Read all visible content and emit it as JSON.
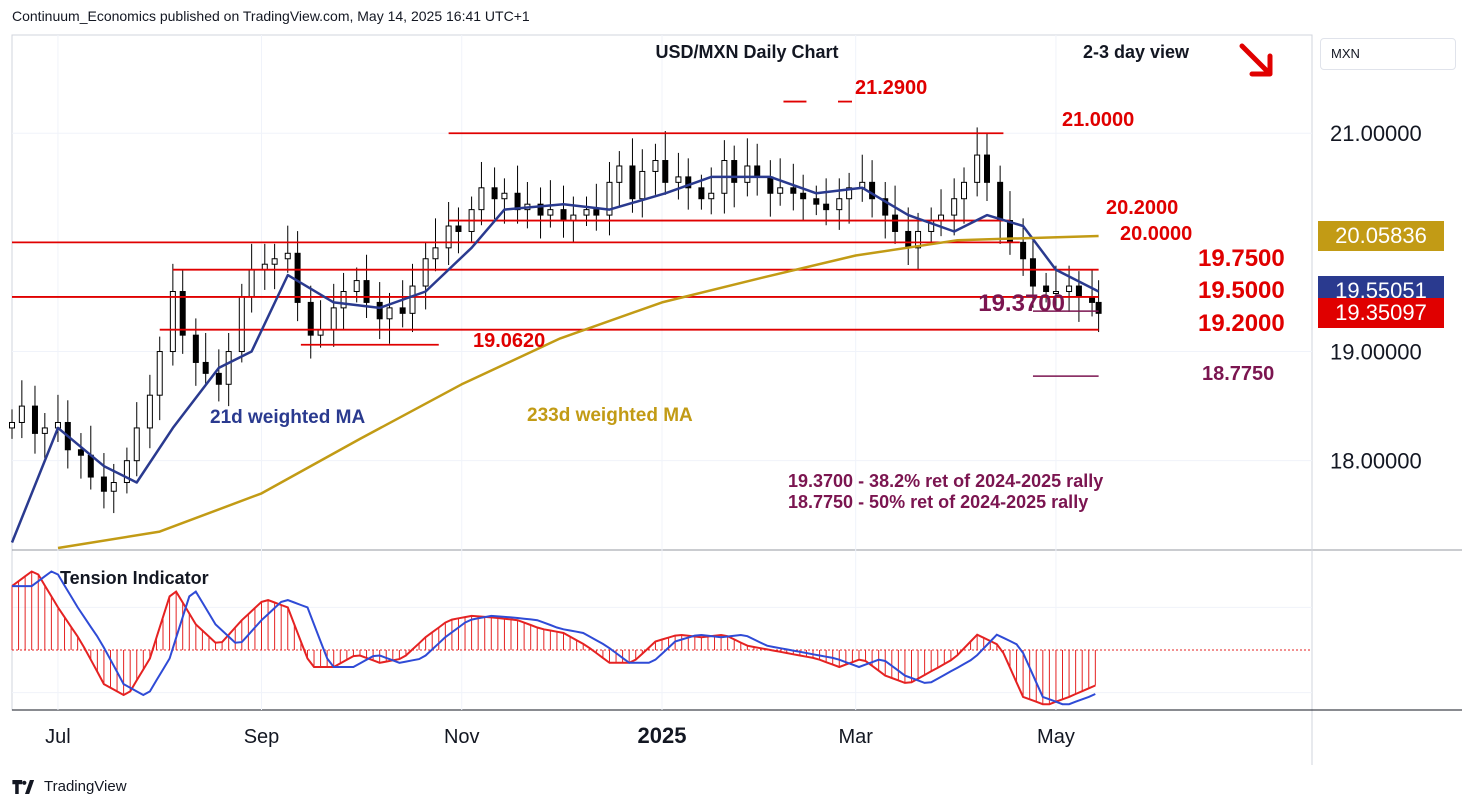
{
  "header": "Continuum_Economics published on TradingView.com, May 14, 2025 16:41 UTC+1",
  "footer": {
    "brand": "TradingView"
  },
  "currency": "MXN",
  "colors": {
    "resistance": "#e00000",
    "ma21": "#2a3a8f",
    "ma233": "#c29b15",
    "retracement": "#7b1550",
    "candle": "#000000",
    "tension_pos": "#e52222",
    "tension_neg": "#e52222",
    "tension_line": "#2f4bd6"
  },
  "price_tags": [
    {
      "label": "20.05836",
      "value": 20.05836,
      "color": "#c29b15"
    },
    {
      "label": "19.55051",
      "value": 19.55051,
      "color": "#2a3a8f"
    },
    {
      "label": "19.35097",
      "value": 19.35097,
      "color": "#e00000"
    }
  ],
  "chart_data": [
    {
      "type": "line",
      "title": "USD/MXN Daily Chart",
      "subtitle": "2-3 day view",
      "view_direction": "down",
      "x_ticks": [
        "Jul",
        "Sep",
        "Nov",
        "2025",
        "Mar",
        "May"
      ],
      "x_tick_dates": [
        "2024-07-01",
        "2024-09-01",
        "2024-11-01",
        "2025-01-01",
        "2025-03-01",
        "2025-05-01"
      ],
      "x_range": [
        "2024-06-17",
        "2025-07-18"
      ],
      "y_ticks": [
        18.0,
        19.0,
        21.0
      ],
      "y_tick_labels": [
        "18.00000",
        "19.00000",
        "21.00000"
      ],
      "ylim": [
        17.2,
        21.9
      ],
      "grid": true,
      "close_series": [
        [
          "2024-06-17",
          18.35
        ],
        [
          "2024-06-20",
          18.5
        ],
        [
          "2024-06-24",
          18.25
        ],
        [
          "2024-06-27",
          18.3
        ],
        [
          "2024-07-01",
          18.35
        ],
        [
          "2024-07-04",
          18.1
        ],
        [
          "2024-07-08",
          18.05
        ],
        [
          "2024-07-11",
          17.85
        ],
        [
          "2024-07-15",
          17.72
        ],
        [
          "2024-07-18",
          17.8
        ],
        [
          "2024-07-22",
          18.0
        ],
        [
          "2024-07-25",
          18.3
        ],
        [
          "2024-07-29",
          18.6
        ],
        [
          "2024-08-01",
          19.0
        ],
        [
          "2024-08-05",
          19.55
        ],
        [
          "2024-08-08",
          19.15
        ],
        [
          "2024-08-12",
          18.9
        ],
        [
          "2024-08-15",
          18.8
        ],
        [
          "2024-08-19",
          18.7
        ],
        [
          "2024-08-22",
          19.0
        ],
        [
          "2024-08-26",
          19.5
        ],
        [
          "2024-08-29",
          19.75
        ],
        [
          "2024-09-02",
          19.8
        ],
        [
          "2024-09-05",
          19.85
        ],
        [
          "2024-09-09",
          19.9
        ],
        [
          "2024-09-12",
          19.45
        ],
        [
          "2024-09-16",
          19.15
        ],
        [
          "2024-09-19",
          19.2
        ],
        [
          "2024-09-23",
          19.4
        ],
        [
          "2024-09-26",
          19.55
        ],
        [
          "2024-09-30",
          19.65
        ],
        [
          "2024-10-03",
          19.45
        ],
        [
          "2024-10-07",
          19.3
        ],
        [
          "2024-10-10",
          19.4
        ],
        [
          "2024-10-14",
          19.35
        ],
        [
          "2024-10-17",
          19.6
        ],
        [
          "2024-10-21",
          19.85
        ],
        [
          "2024-10-24",
          19.95
        ],
        [
          "2024-10-28",
          20.15
        ],
        [
          "2024-10-31",
          20.1
        ],
        [
          "2024-11-04",
          20.3
        ],
        [
          "2024-11-07",
          20.5
        ],
        [
          "2024-11-11",
          20.4
        ],
        [
          "2024-11-14",
          20.45
        ],
        [
          "2024-11-18",
          20.3
        ],
        [
          "2024-11-21",
          20.35
        ],
        [
          "2024-11-25",
          20.25
        ],
        [
          "2024-11-28",
          20.3
        ],
        [
          "2024-12-02",
          20.2
        ],
        [
          "2024-12-05",
          20.25
        ],
        [
          "2024-12-09",
          20.3
        ],
        [
          "2024-12-12",
          20.25
        ],
        [
          "2024-12-16",
          20.55
        ],
        [
          "2024-12-19",
          20.7
        ],
        [
          "2024-12-23",
          20.4
        ],
        [
          "2024-12-26",
          20.65
        ],
        [
          "2024-12-30",
          20.75
        ],
        [
          "2025-01-02",
          20.55
        ],
        [
          "2025-01-06",
          20.6
        ],
        [
          "2025-01-09",
          20.5
        ],
        [
          "2025-01-13",
          20.4
        ],
        [
          "2025-01-16",
          20.45
        ],
        [
          "2025-01-20",
          20.75
        ],
        [
          "2025-01-23",
          20.55
        ],
        [
          "2025-01-27",
          20.7
        ],
        [
          "2025-01-30",
          20.6
        ],
        [
          "2025-02-03",
          20.45
        ],
        [
          "2025-02-06",
          20.5
        ],
        [
          "2025-02-10",
          20.45
        ],
        [
          "2025-02-13",
          20.4
        ],
        [
          "2025-02-17",
          20.35
        ],
        [
          "2025-02-20",
          20.3
        ],
        [
          "2025-02-24",
          20.4
        ],
        [
          "2025-02-27",
          20.5
        ],
        [
          "2025-03-03",
          20.55
        ],
        [
          "2025-03-06",
          20.4
        ],
        [
          "2025-03-10",
          20.25
        ],
        [
          "2025-03-13",
          20.1
        ],
        [
          "2025-03-17",
          19.95
        ],
        [
          "2025-03-20",
          20.1
        ],
        [
          "2025-03-24",
          20.2
        ],
        [
          "2025-03-27",
          20.25
        ],
        [
          "2025-03-31",
          20.4
        ],
        [
          "2025-04-03",
          20.55
        ],
        [
          "2025-04-07",
          20.8
        ],
        [
          "2025-04-10",
          20.55
        ],
        [
          "2025-04-14",
          20.2
        ],
        [
          "2025-04-17",
          20.0
        ],
        [
          "2025-04-21",
          19.85
        ],
        [
          "2025-04-24",
          19.6
        ],
        [
          "2025-04-28",
          19.55
        ],
        [
          "2025-05-01",
          19.55
        ],
        [
          "2025-05-05",
          19.6
        ],
        [
          "2025-05-08",
          19.5
        ],
        [
          "2025-05-12",
          19.45
        ],
        [
          "2025-05-14",
          19.35
        ]
      ],
      "series": [
        {
          "name": "21d weighted MA",
          "values": [
            [
              "2024-06-17",
              17.25
            ],
            [
              "2024-07-01",
              18.3
            ],
            [
              "2024-07-15",
              17.95
            ],
            [
              "2024-07-25",
              17.8
            ],
            [
              "2024-08-05",
              18.3
            ],
            [
              "2024-08-19",
              18.85
            ],
            [
              "2024-08-29",
              19.0
            ],
            [
              "2024-09-09",
              19.7
            ],
            [
              "2024-09-23",
              19.45
            ],
            [
              "2024-10-07",
              19.4
            ],
            [
              "2024-10-21",
              19.55
            ],
            [
              "2024-11-04",
              19.95
            ],
            [
              "2024-11-14",
              20.3
            ],
            [
              "2024-12-02",
              20.35
            ],
            [
              "2024-12-16",
              20.3
            ],
            [
              "2025-01-02",
              20.45
            ],
            [
              "2025-01-16",
              20.6
            ],
            [
              "2025-02-03",
              20.6
            ],
            [
              "2025-02-17",
              20.45
            ],
            [
              "2025-03-03",
              20.5
            ],
            [
              "2025-03-17",
              20.25
            ],
            [
              "2025-03-31",
              20.1
            ],
            [
              "2025-04-10",
              20.25
            ],
            [
              "2025-04-21",
              20.15
            ],
            [
              "2025-05-01",
              19.75
            ],
            [
              "2025-05-14",
              19.55
            ]
          ]
        },
        {
          "name": "233d weighted MA",
          "values": [
            [
              "2024-07-01",
              17.2
            ],
            [
              "2024-08-01",
              17.35
            ],
            [
              "2024-09-01",
              17.7
            ],
            [
              "2024-10-01",
              18.2
            ],
            [
              "2024-11-01",
              18.7
            ],
            [
              "2024-12-01",
              19.12
            ],
            [
              "2025-01-01",
              19.45
            ],
            [
              "2025-02-01",
              19.68
            ],
            [
              "2025-03-01",
              19.88
            ],
            [
              "2025-04-01",
              20.02
            ],
            [
              "2025-05-14",
              20.05836
            ]
          ]
        }
      ],
      "levels": [
        {
          "label": "21.2900",
          "value": 21.29,
          "start": "2025-02-07",
          "end": "2025-02-14",
          "kind": "resistance"
        },
        {
          "label": "21.0000",
          "value": 21.0,
          "start": "2024-10-28",
          "end": "2025-04-15",
          "kind": "resistance"
        },
        {
          "label": "20.2000",
          "value": 20.2,
          "start": "2024-10-28",
          "end": "2025-04-17",
          "kind": "resistance"
        },
        {
          "label": "20.0000",
          "value": 20.0,
          "start": "2024-06-17",
          "end": "2025-04-20",
          "kind": "resistance"
        },
        {
          "label": "19.7500",
          "value": 19.75,
          "start": "2024-08-05",
          "end": "2025-05-14",
          "kind": "resistance"
        },
        {
          "label": "19.5000",
          "value": 19.5,
          "start": "2024-06-17",
          "end": "2025-05-14",
          "kind": "resistance"
        },
        {
          "label": "19.2000",
          "value": 19.2,
          "start": "2024-08-01",
          "end": "2025-05-14",
          "kind": "resistance"
        },
        {
          "label": "19.0620",
          "value": 19.062,
          "start": "2024-09-13",
          "end": "2024-10-25",
          "kind": "resistance"
        },
        {
          "label": "19.3700",
          "value": 19.37,
          "start": "2025-04-24",
          "end": "2025-05-14",
          "kind": "retracement"
        },
        {
          "label": "18.7750",
          "value": 18.775,
          "start": "2025-04-24",
          "end": "2025-05-14",
          "kind": "retracement"
        }
      ],
      "annotations": [
        {
          "text": "21d weighted MA",
          "color": "ma21"
        },
        {
          "text": "233d weighted MA",
          "color": "ma233"
        },
        {
          "text": "19.3700 - 38.2% ret of 2024-2025 rally",
          "color": "retracement"
        },
        {
          "text": "18.7750 - 50% ret of 2024-2025 rally",
          "color": "retracement"
        }
      ]
    },
    {
      "type": "bar",
      "title": "Tension Indicator",
      "ylim": [
        -1.15,
        1.15
      ],
      "values": [
        [
          "2024-06-17",
          0.75
        ],
        [
          "2024-06-24",
          0.95
        ],
        [
          "2024-07-01",
          0.5
        ],
        [
          "2024-07-08",
          0.1
        ],
        [
          "2024-07-15",
          -0.4
        ],
        [
          "2024-07-22",
          -0.55
        ],
        [
          "2024-07-29",
          -0.1
        ],
        [
          "2024-08-05",
          0.75
        ],
        [
          "2024-08-12",
          0.3
        ],
        [
          "2024-08-19",
          0.05
        ],
        [
          "2024-08-26",
          0.35
        ],
        [
          "2024-09-02",
          0.6
        ],
        [
          "2024-09-09",
          0.5
        ],
        [
          "2024-09-16",
          -0.2
        ],
        [
          "2024-09-23",
          -0.2
        ],
        [
          "2024-09-30",
          -0.05
        ],
        [
          "2024-10-07",
          -0.15
        ],
        [
          "2024-10-14",
          -0.1
        ],
        [
          "2024-10-21",
          0.15
        ],
        [
          "2024-10-28",
          0.35
        ],
        [
          "2024-11-04",
          0.4
        ],
        [
          "2024-11-11",
          0.38
        ],
        [
          "2024-11-18",
          0.35
        ],
        [
          "2024-11-25",
          0.25
        ],
        [
          "2024-12-02",
          0.2
        ],
        [
          "2024-12-09",
          0.05
        ],
        [
          "2024-12-16",
          -0.15
        ],
        [
          "2024-12-23",
          -0.15
        ],
        [
          "2024-12-30",
          0.1
        ],
        [
          "2025-01-06",
          0.18
        ],
        [
          "2025-01-13",
          0.15
        ],
        [
          "2025-01-20",
          0.18
        ],
        [
          "2025-01-27",
          0.05
        ],
        [
          "2025-02-03",
          0.0
        ],
        [
          "2025-02-10",
          -0.05
        ],
        [
          "2025-02-17",
          -0.1
        ],
        [
          "2025-02-24",
          -0.2
        ],
        [
          "2025-03-03",
          -0.1
        ],
        [
          "2025-03-10",
          -0.3
        ],
        [
          "2025-03-17",
          -0.4
        ],
        [
          "2025-03-24",
          -0.25
        ],
        [
          "2025-03-31",
          -0.1
        ],
        [
          "2025-04-07",
          0.18
        ],
        [
          "2025-04-14",
          0.05
        ],
        [
          "2025-04-21",
          -0.55
        ],
        [
          "2025-04-28",
          -0.65
        ],
        [
          "2025-05-05",
          -0.55
        ],
        [
          "2025-05-14",
          -0.4
        ]
      ]
    }
  ]
}
